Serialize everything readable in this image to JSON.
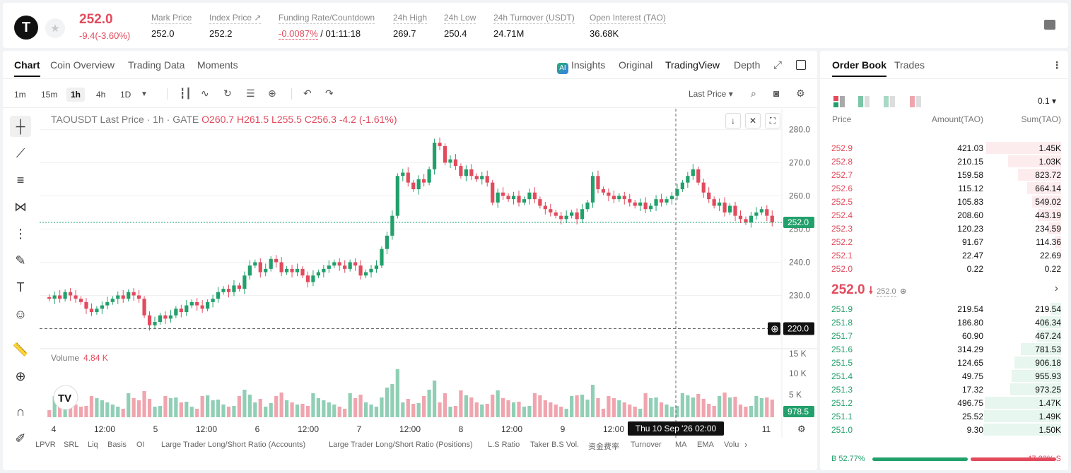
{
  "header": {
    "logo_letter": "T",
    "last_price": "252.0",
    "change": "-9.4(-3.60%)",
    "stats": [
      {
        "label": "Mark Price",
        "value": "252.0"
      },
      {
        "label": "Index Price ↗",
        "value": "252.2"
      },
      {
        "label": "Funding Rate/Countdown",
        "value": "-0.0087%",
        "value2": " / 01:11:18"
      },
      {
        "label": "24h High",
        "value": "269.7"
      },
      {
        "label": "24h Low",
        "value": "250.4"
      },
      {
        "label": "24h Turnover (USDT)",
        "value": "24.71M"
      },
      {
        "label": "Open Interest (TAO)",
        "value": "36.68K"
      }
    ]
  },
  "chart_tabs": [
    "Chart",
    "Coin Overview",
    "Trading Data",
    "Moments"
  ],
  "view_tabs": {
    "insights": "Insights",
    "original": "Original",
    "tradingview": "TradingView",
    "depth": "Depth"
  },
  "intervals": [
    "1m",
    "15m",
    "1h",
    "4h",
    "1D"
  ],
  "active_interval": "1h",
  "price_type": "Last Price",
  "ohlc": {
    "symbol": "TAOUSDT Last Price · 1h · GATE",
    "o": "O260.7",
    "h": "H261.5",
    "l": "L255.5",
    "c": "C256.3",
    "chg": "-4.2 (-1.61%)"
  },
  "volume": {
    "label": "Volume",
    "value": "4.84 K"
  },
  "price_axis": [
    "280.0",
    "270.0",
    "260.0",
    "250.0",
    "240.0",
    "230.0"
  ],
  "volume_axis": [
    "15 K",
    "10 K",
    "5 K"
  ],
  "current_price_tag": "252.0",
  "crosshair_price_tag": "220.0",
  "volume_tag": "978.5",
  "time_axis": [
    "4",
    "12:00",
    "5",
    "12:00",
    "6",
    "12:00",
    "7",
    "12:00",
    "8",
    "12:00",
    "9",
    "12:00",
    "10",
    "12:00",
    "11"
  ],
  "crosshair_time": "Thu 10 Sep '26   02:00",
  "indicators": [
    "LPVR",
    "SRL",
    "Liq",
    "Basis",
    "OI",
    "Large Trader Long/Short Ratio (Accounts)",
    "Large Trader Long/Short Ratio (Positions)",
    "L.S Ratio",
    "Taker B.S Vol.",
    "资金费率",
    "Turnover",
    "MA",
    "EMA",
    "Volu"
  ],
  "orderbook": {
    "tabs": [
      "Order Book",
      "Trades"
    ],
    "precision": "0.1",
    "headers": {
      "price": "Price",
      "amount": "Amount(TAO)",
      "sum": "Sum(TAO)"
    },
    "asks": [
      {
        "price": "252.9",
        "amount": "421.03",
        "sum": "1.45K",
        "depth": 0.96
      },
      {
        "price": "252.8",
        "amount": "210.15",
        "sum": "1.03K",
        "depth": 0.68
      },
      {
        "price": "252.7",
        "amount": "159.58",
        "sum": "823.72",
        "depth": 0.55
      },
      {
        "price": "252.6",
        "amount": "115.12",
        "sum": "664.14",
        "depth": 0.44
      },
      {
        "price": "252.5",
        "amount": "105.83",
        "sum": "549.02",
        "depth": 0.37
      },
      {
        "price": "252.4",
        "amount": "208.60",
        "sum": "443.19",
        "depth": 0.3
      },
      {
        "price": "252.3",
        "amount": "120.23",
        "sum": "234.59",
        "depth": 0.16
      },
      {
        "price": "252.2",
        "amount": "91.67",
        "sum": "114.36",
        "depth": 0.08
      },
      {
        "price": "252.1",
        "amount": "22.47",
        "sum": "22.69",
        "depth": 0.02
      },
      {
        "price": "252.0",
        "amount": "0.22",
        "sum": "0.22",
        "depth": 0.0
      }
    ],
    "mid": {
      "price": "252.0",
      "mark": "252.0"
    },
    "bids": [
      {
        "price": "251.9",
        "amount": "219.54",
        "sum": "219.54",
        "depth": 0.14
      },
      {
        "price": "251.8",
        "amount": "186.80",
        "sum": "406.34",
        "depth": 0.27
      },
      {
        "price": "251.7",
        "amount": "60.90",
        "sum": "467.24",
        "depth": 0.31
      },
      {
        "price": "251.6",
        "amount": "314.29",
        "sum": "781.53",
        "depth": 0.52
      },
      {
        "price": "251.5",
        "amount": "124.65",
        "sum": "906.18",
        "depth": 0.6
      },
      {
        "price": "251.4",
        "amount": "49.75",
        "sum": "955.93",
        "depth": 0.64
      },
      {
        "price": "251.3",
        "amount": "17.32",
        "sum": "973.25",
        "depth": 0.65
      },
      {
        "price": "251.2",
        "amount": "496.75",
        "sum": "1.47K",
        "depth": 0.98
      },
      {
        "price": "251.1",
        "amount": "25.52",
        "sum": "1.49K",
        "depth": 0.99
      },
      {
        "price": "251.0",
        "amount": "9.30",
        "sum": "1.50K",
        "depth": 1.0
      }
    ],
    "buy_ratio": "B 52.77%",
    "sell_ratio": "47.23% S",
    "buy_pct": 52.77
  },
  "colors": {
    "up": "#22a06b",
    "down": "#e24b5d"
  },
  "chart_data": {
    "type": "candlestick",
    "y_unit": "USDT",
    "closes": [
      229,
      230,
      229,
      231,
      230,
      229,
      228,
      226,
      225,
      226,
      227,
      228,
      229,
      230,
      229,
      231,
      230,
      229,
      224,
      221,
      222,
      224,
      223,
      224,
      226,
      225,
      227,
      228,
      227,
      226,
      228,
      229,
      231,
      232,
      231,
      233,
      232,
      236,
      239,
      240,
      237,
      238,
      241,
      240,
      237,
      238,
      237,
      238,
      236,
      234,
      236,
      237,
      238,
      239,
      240,
      239,
      238,
      240,
      239,
      236,
      237,
      238,
      239,
      244,
      248,
      254,
      266,
      267,
      264,
      262,
      265,
      264,
      268,
      276,
      275,
      270,
      271,
      269,
      266,
      268,
      266,
      265,
      266,
      264,
      258,
      261,
      260,
      259,
      260,
      258,
      259,
      261,
      259,
      257,
      256,
      255,
      254,
      253,
      254,
      255,
      253,
      256,
      258,
      266,
      262,
      261,
      260,
      259,
      260,
      259,
      258,
      257,
      258,
      256,
      257,
      259,
      258,
      259,
      260,
      262,
      264,
      266,
      268,
      264,
      261,
      259,
      257,
      258,
      255,
      257,
      254,
      253,
      252,
      254,
      255,
      256,
      254,
      252
    ]
  }
}
